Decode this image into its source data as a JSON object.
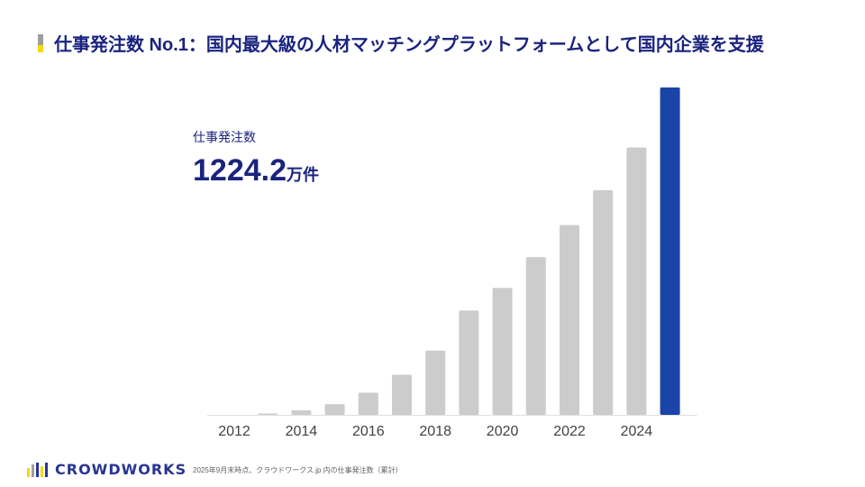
{
  "header": {
    "title": "仕事発注数 No.1：国内最大級の人材マッチングプラットフォームとして国内企業を支援"
  },
  "metric": {
    "label": "仕事発注数",
    "value": "1224.2",
    "unit": "万件"
  },
  "chart_data": {
    "type": "bar",
    "title": "",
    "xlabel": "",
    "ylabel": "",
    "categories": [
      "2012",
      "2013",
      "2014",
      "2015",
      "2016",
      "2017",
      "2018",
      "2019",
      "2020",
      "2021",
      "2022",
      "2023",
      "2024",
      "2025"
    ],
    "tick_labels": [
      "2012",
      "2014",
      "2016",
      "2018",
      "2020",
      "2022",
      "2024"
    ],
    "values": [
      0,
      5,
      17,
      40,
      83,
      150,
      240,
      390,
      475,
      590,
      710,
      840,
      1000,
      1224.2
    ],
    "ylim": [
      0,
      1224.2
    ],
    "grid": false,
    "legend": "none",
    "highlight_index": 13,
    "colors": {
      "default": "#cccccc",
      "highlight": "#1a44a8",
      "axis": "#e0e0e0"
    }
  },
  "footer": {
    "logo_text": "CROWDWORKS",
    "note": "2025年9月末時点、クラウドワークス.jp 内の仕事発注数（累計）",
    "logo_colors": [
      "#f5d90a",
      "#9e9e9e",
      "#283593",
      "#f5d90a",
      "#283593"
    ]
  }
}
